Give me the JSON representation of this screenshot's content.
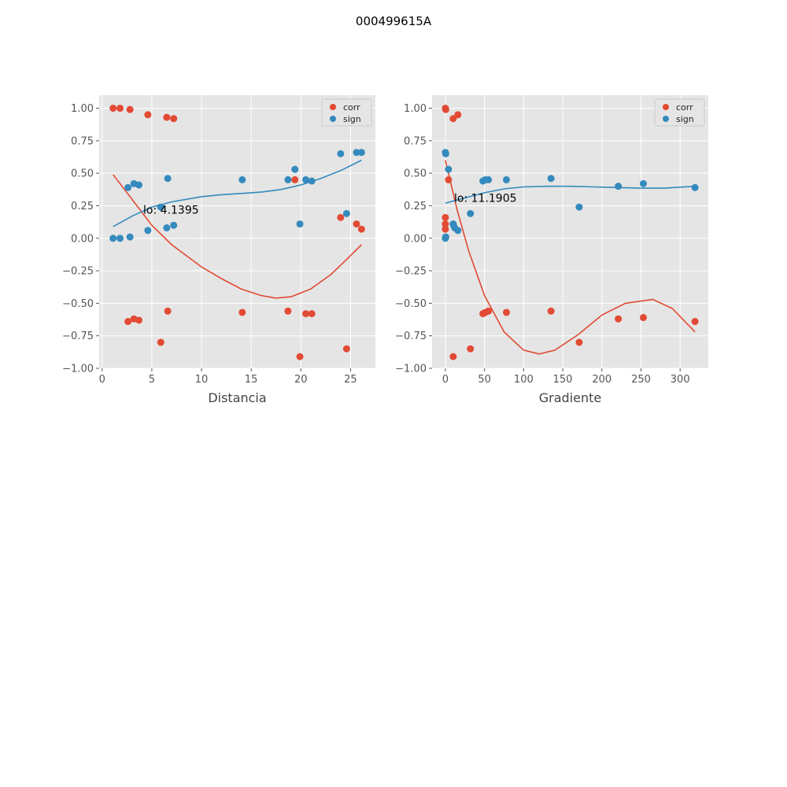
{
  "figure_title": "000499615A",
  "colors": {
    "corr": "#e24a33",
    "sign": "#348abd",
    "panel_bg": "#e5e5e5",
    "grid": "#ffffff"
  },
  "chart_data": [
    {
      "type": "scatter",
      "xlabel": "Distancia",
      "ylabel": "",
      "xlim": [
        -0.3,
        27.5
      ],
      "ylim": [
        -1.0,
        1.1
      ],
      "xticks": [
        0,
        5,
        10,
        15,
        20,
        25
      ],
      "yticks": [
        -1.0,
        -0.75,
        -0.5,
        -0.25,
        0.0,
        0.25,
        0.5,
        0.75,
        1.0
      ],
      "ytick_labels": [
        "−1.00",
        "−0.75",
        "−0.50",
        "−0.25",
        "0.00",
        "0.25",
        "0.50",
        "0.75",
        "1.00"
      ],
      "grid": true,
      "legend_position": "upper right",
      "annotation": {
        "text": "lo: 4.1395",
        "x": 4.1395,
        "y": 0.22
      },
      "series": [
        {
          "name": "corr",
          "x": [
            1.1,
            1.8,
            2.8,
            4.6,
            6.5,
            7.2,
            19.4,
            24.0,
            25.6,
            26.1,
            2.6,
            3.2,
            3.7,
            6.6,
            14.1,
            18.7,
            20.5,
            21.1,
            5.9,
            19.9,
            24.6
          ],
          "y": [
            1.0,
            1.0,
            0.99,
            0.95,
            0.93,
            0.92,
            0.45,
            0.16,
            0.11,
            0.07,
            -0.64,
            -0.62,
            -0.63,
            -0.56,
            -0.57,
            -0.56,
            -0.58,
            -0.58,
            -0.8,
            -0.91,
            -0.85
          ]
        },
        {
          "name": "sign",
          "x": [
            1.1,
            1.8,
            2.8,
            2.6,
            3.2,
            3.7,
            4.6,
            5.9,
            6.5,
            6.6,
            7.2,
            14.1,
            18.7,
            19.4,
            19.9,
            20.5,
            21.1,
            24.0,
            24.6,
            25.6,
            26.1
          ],
          "y": [
            0.0,
            0.0,
            0.01,
            0.39,
            0.42,
            0.41,
            0.06,
            0.24,
            0.08,
            0.46,
            0.1,
            0.45,
            0.45,
            0.53,
            0.11,
            0.45,
            0.44,
            0.65,
            0.19,
            0.66,
            0.66
          ]
        }
      ],
      "fits": [
        {
          "series": "corr",
          "x": [
            1.1,
            3,
            5,
            7,
            10,
            12,
            14,
            16,
            17.5,
            19,
            21,
            23,
            24.5,
            26.1
          ],
          "y": [
            0.49,
            0.3,
            0.1,
            -0.05,
            -0.22,
            -0.31,
            -0.39,
            -0.44,
            -0.46,
            -0.45,
            -0.39,
            -0.28,
            -0.17,
            -0.05
          ]
        },
        {
          "series": "sign",
          "x": [
            1.1,
            3,
            5,
            7,
            10,
            12,
            14,
            16,
            18,
            20,
            22,
            24,
            26.1
          ],
          "y": [
            0.09,
            0.17,
            0.24,
            0.28,
            0.32,
            0.335,
            0.345,
            0.355,
            0.375,
            0.41,
            0.46,
            0.52,
            0.6
          ]
        }
      ]
    },
    {
      "type": "scatter",
      "xlabel": "Gradiente",
      "ylabel": "",
      "xlim": [
        -17,
        336
      ],
      "ylim": [
        -1.0,
        1.1
      ],
      "xticks": [
        0,
        50,
        100,
        150,
        200,
        250,
        300
      ],
      "yticks": [
        -1.0,
        -0.75,
        -0.5,
        -0.25,
        0.0,
        0.25,
        0.5,
        0.75,
        1.0
      ],
      "ytick_labels": [
        "−1.00",
        "−0.75",
        "−0.50",
        "−0.25",
        "0.00",
        "0.25",
        "0.50",
        "0.75",
        "1.00"
      ],
      "grid": true,
      "legend_position": "upper right",
      "annotation": {
        "text": "lo: 11.1905",
        "x": 11.1905,
        "y": 0.31
      },
      "series": [
        {
          "name": "corr",
          "x": [
            0,
            0.5,
            10,
            16,
            4,
            0,
            0,
            0,
            48,
            51,
            55,
            78,
            135,
            171,
            221,
            253,
            319,
            10,
            32
          ],
          "y": [
            1.0,
            0.99,
            0.92,
            0.95,
            0.45,
            0.16,
            0.11,
            0.07,
            -0.58,
            -0.57,
            -0.56,
            -0.57,
            -0.56,
            -0.8,
            -0.62,
            -0.61,
            -0.64,
            -0.91,
            -0.85
          ],
          "note": ""
        },
        {
          "name": "sign",
          "x": [
            0,
            0.5,
            4,
            0,
            0.5,
            10,
            10.5,
            12,
            16,
            32,
            48,
            51,
            55,
            78,
            135,
            171,
            221,
            253,
            319
          ],
          "y": [
            0.66,
            0.65,
            0.53,
            0.0,
            0.01,
            0.11,
            0.1,
            0.08,
            0.06,
            0.19,
            0.44,
            0.45,
            0.45,
            0.45,
            0.46,
            0.24,
            0.4,
            0.42,
            0.39
          ]
        }
      ],
      "fits": [
        {
          "series": "corr",
          "x": [
            0,
            15,
            30,
            50,
            75,
            100,
            120,
            140,
            170,
            200,
            230,
            265,
            290,
            319
          ],
          "y": [
            0.6,
            0.22,
            -0.1,
            -0.44,
            -0.72,
            -0.86,
            -0.89,
            -0.86,
            -0.74,
            -0.59,
            -0.5,
            -0.47,
            -0.54,
            -0.72
          ]
        },
        {
          "series": "sign",
          "x": [
            0,
            25,
            50,
            75,
            100,
            130,
            160,
            190,
            220,
            250,
            280,
            319
          ],
          "y": [
            0.27,
            0.31,
            0.35,
            0.38,
            0.395,
            0.4,
            0.4,
            0.395,
            0.39,
            0.385,
            0.385,
            0.4
          ]
        }
      ]
    }
  ]
}
